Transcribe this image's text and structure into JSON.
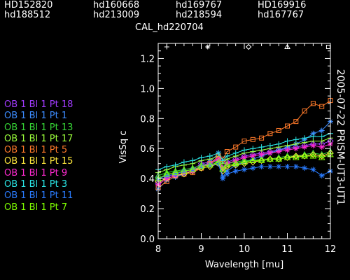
{
  "header": {
    "stars_row1": [
      "HD152820",
      "hd160668",
      "hd169767",
      "HD169916"
    ],
    "stars_row2": [
      "hd188512",
      "hd213009",
      "hd218594",
      "hd167767"
    ],
    "calibrator": "CAL_hd220704"
  },
  "side_label": "2005-07-22 PRISM-UT3-UT1",
  "chart_data": {
    "type": "line",
    "xlabel": "Wavelength [mu]",
    "ylabel": "VisSq c",
    "xlim": [
      8,
      12
    ],
    "ylim": [
      0,
      1.3
    ],
    "xticks": [
      "8",
      "9",
      "10",
      "11",
      "12"
    ],
    "yticks": [
      "0.0",
      "0.2",
      "0.4",
      "0.6",
      "0.8",
      "1.0",
      "1.2"
    ],
    "x": [
      8.0,
      8.2,
      8.4,
      8.6,
      8.8,
      9.0,
      9.2,
      9.4,
      9.5,
      9.6,
      9.8,
      10.0,
      10.2,
      10.4,
      10.6,
      10.8,
      11.0,
      11.2,
      11.4,
      11.6,
      11.8,
      12.0
    ],
    "top_markers": [
      {
        "x": 8.2,
        "symbol": "+"
      },
      {
        "x": 9.15,
        "symbol": "*"
      },
      {
        "x": 10.1,
        "symbol": "diamond"
      },
      {
        "x": 11.0,
        "symbol": "triangle"
      },
      {
        "x": 11.95,
        "symbol": "square"
      }
    ],
    "series": [
      {
        "name": "OB 1 Bl 1 Pt 18",
        "color": "#a23bff",
        "marker": "diamond",
        "values": [
          0.37,
          0.41,
          0.43,
          0.45,
          0.46,
          0.5,
          0.51,
          0.53,
          0.47,
          0.51,
          0.53,
          0.55,
          0.56,
          0.57,
          0.58,
          0.59,
          0.6,
          0.61,
          0.62,
          0.63,
          0.63,
          0.65
        ]
      },
      {
        "name": "OB 1 Bl 1 Pt 1",
        "color": "#3c8cff",
        "marker": "star",
        "values": [
          0.33,
          0.39,
          0.41,
          0.43,
          0.45,
          0.48,
          0.51,
          0.57,
          0.41,
          0.45,
          0.49,
          0.51,
          0.53,
          0.55,
          0.57,
          0.59,
          0.61,
          0.63,
          0.66,
          0.7,
          0.72,
          0.78
        ]
      },
      {
        "name": "OB 1 Bl 1 Pt 13",
        "color": "#36d636",
        "marker": "triangle",
        "values": [
          0.42,
          0.44,
          0.45,
          0.46,
          0.47,
          0.49,
          0.5,
          0.52,
          0.47,
          0.5,
          0.51,
          0.52,
          0.52,
          0.53,
          0.53,
          0.54,
          0.55,
          0.55,
          0.56,
          0.57,
          0.56,
          0.58
        ]
      },
      {
        "name": "OB 1 Bl 1 Pt 17",
        "color": "#9cff3c",
        "marker": "plus",
        "values": [
          0.44,
          0.46,
          0.48,
          0.49,
          0.5,
          0.52,
          0.53,
          0.55,
          0.5,
          0.53,
          0.55,
          0.57,
          0.58,
          0.59,
          0.6,
          0.61,
          0.62,
          0.63,
          0.64,
          0.65,
          0.65,
          0.67
        ]
      },
      {
        "name": "OB 1 Bl 1 Pt 5",
        "color": "#ff7a2a",
        "marker": "square",
        "values": [
          0.34,
          0.38,
          0.42,
          0.43,
          0.44,
          0.47,
          0.5,
          0.55,
          0.53,
          0.58,
          0.61,
          0.65,
          0.66,
          0.67,
          0.7,
          0.72,
          0.75,
          0.78,
          0.85,
          0.9,
          0.88,
          0.92
        ]
      },
      {
        "name": "OB 1 Bl 1 Pt 15",
        "color": "#ffe83c",
        "marker": "diamond",
        "values": [
          0.38,
          0.4,
          0.42,
          0.43,
          0.45,
          0.47,
          0.48,
          0.5,
          0.45,
          0.48,
          0.49,
          0.5,
          0.51,
          0.52,
          0.53,
          0.53,
          0.54,
          0.55,
          0.55,
          0.56,
          0.55,
          0.57
        ]
      },
      {
        "name": "OB 1 Bl 1 Pt 9",
        "color": "#ff2ad0",
        "marker": "star",
        "values": [
          0.36,
          0.4,
          0.42,
          0.44,
          0.45,
          0.48,
          0.5,
          0.53,
          0.47,
          0.5,
          0.52,
          0.54,
          0.55,
          0.56,
          0.57,
          0.58,
          0.59,
          0.6,
          0.61,
          0.62,
          0.61,
          0.63
        ]
      },
      {
        "name": "OB 1 Bl 1 Pt 3",
        "color": "#2ae6e6",
        "marker": "plus",
        "values": [
          0.46,
          0.48,
          0.49,
          0.51,
          0.52,
          0.54,
          0.55,
          0.57,
          0.52,
          0.55,
          0.57,
          0.59,
          0.6,
          0.61,
          0.62,
          0.63,
          0.65,
          0.66,
          0.67,
          0.68,
          0.68,
          0.7
        ]
      },
      {
        "name": "OB 1 Bl 1 Pt 11",
        "color": "#2a7cff",
        "marker": "star",
        "values": [
          0.4,
          0.42,
          0.43,
          0.45,
          0.46,
          0.48,
          0.49,
          0.5,
          0.4,
          0.43,
          0.45,
          0.46,
          0.47,
          0.48,
          0.48,
          0.48,
          0.48,
          0.48,
          0.47,
          0.46,
          0.42,
          0.45
        ]
      },
      {
        "name": "OB 1 Bl 1 Pt 7",
        "color": "#7fff00",
        "marker": "triangle",
        "values": [
          0.4,
          0.43,
          0.44,
          0.45,
          0.46,
          0.48,
          0.49,
          0.51,
          0.46,
          0.49,
          0.5,
          0.51,
          0.52,
          0.52,
          0.53,
          0.53,
          0.54,
          0.54,
          0.55,
          0.55,
          0.54,
          0.56
        ]
      }
    ]
  }
}
